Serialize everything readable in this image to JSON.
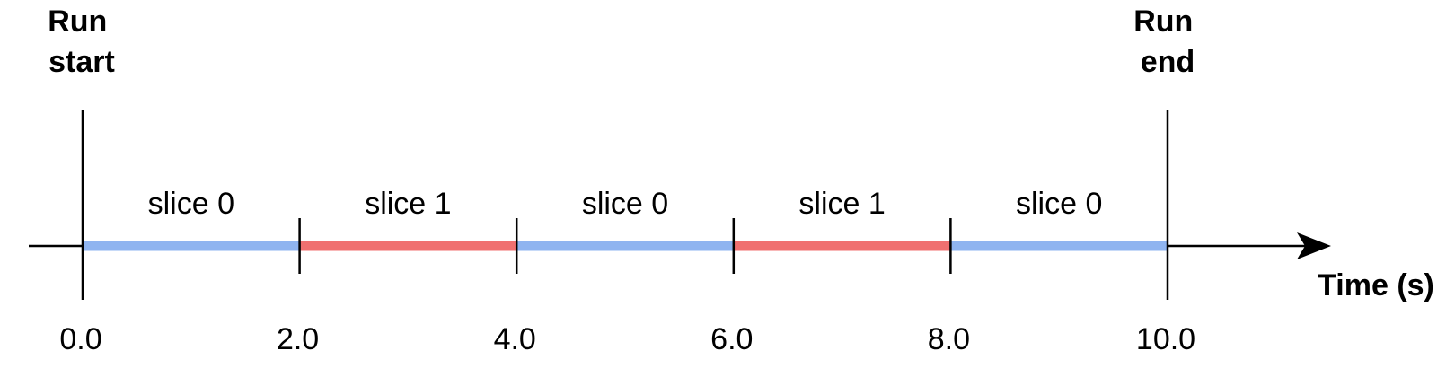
{
  "run_markers": [
    {
      "id": "start",
      "lines": [
        "Run",
        "start"
      ],
      "time": 0.0
    },
    {
      "id": "end",
      "lines": [
        "Run",
        "end"
      ],
      "time": 10.0
    }
  ],
  "segments": [
    {
      "label": "slice 0",
      "start": 0.0,
      "end": 2.0,
      "color": "#8fb4f0"
    },
    {
      "label": "slice 1",
      "start": 2.0,
      "end": 4.0,
      "color": "#f07070"
    },
    {
      "label": "slice 0",
      "start": 4.0,
      "end": 6.0,
      "color": "#8fb4f0"
    },
    {
      "label": "slice 1",
      "start": 6.0,
      "end": 8.0,
      "color": "#f07070"
    },
    {
      "label": "slice 0",
      "start": 8.0,
      "end": 10.0,
      "color": "#8fb4f0"
    }
  ],
  "ticks": [
    "0.0",
    "2.0",
    "4.0",
    "6.0",
    "8.0",
    "10.0"
  ],
  "axis_label": "Time (s)",
  "colors": {
    "slice_0": "#8fb4f0",
    "slice_1": "#f07070",
    "axis": "#000000"
  }
}
